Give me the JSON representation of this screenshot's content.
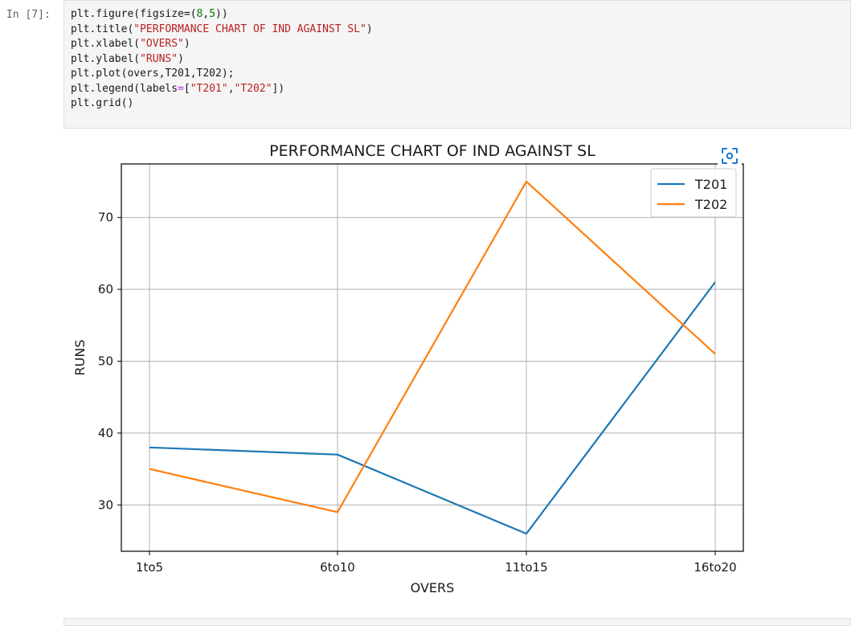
{
  "cell": {
    "prompt": "In [7]:",
    "code_lines": [
      "plt.figure(figsize=(8,5))",
      "plt.title(\"PERFORMANCE CHART OF IND AGAINST SL\")",
      "plt.xlabel(\"OVERS\")",
      "plt.ylabel(\"RUNS\")",
      "plt.plot(overs,T201,T202);",
      "plt.legend(labels=[\"T201\",\"T202\"])",
      "plt.grid()"
    ]
  },
  "expand_icon": "expand-image-icon",
  "chart_data": {
    "type": "line",
    "title": "PERFORMANCE CHART OF IND AGAINST SL",
    "xlabel": "OVERS",
    "ylabel": "RUNS",
    "categories": [
      "1to5",
      "6to10",
      "11to15",
      "16to20"
    ],
    "series": [
      {
        "name": "T201",
        "values": [
          38,
          37,
          26,
          61
        ],
        "color": "#1f77b4"
      },
      {
        "name": "T202",
        "values": [
          35,
          29,
          75,
          51
        ],
        "color": "#ff7f0e"
      }
    ],
    "yticks": [
      30,
      40,
      50,
      60,
      70
    ],
    "ylim": [
      23.55,
      77.45
    ],
    "grid": true,
    "legend_position": "upper right"
  }
}
